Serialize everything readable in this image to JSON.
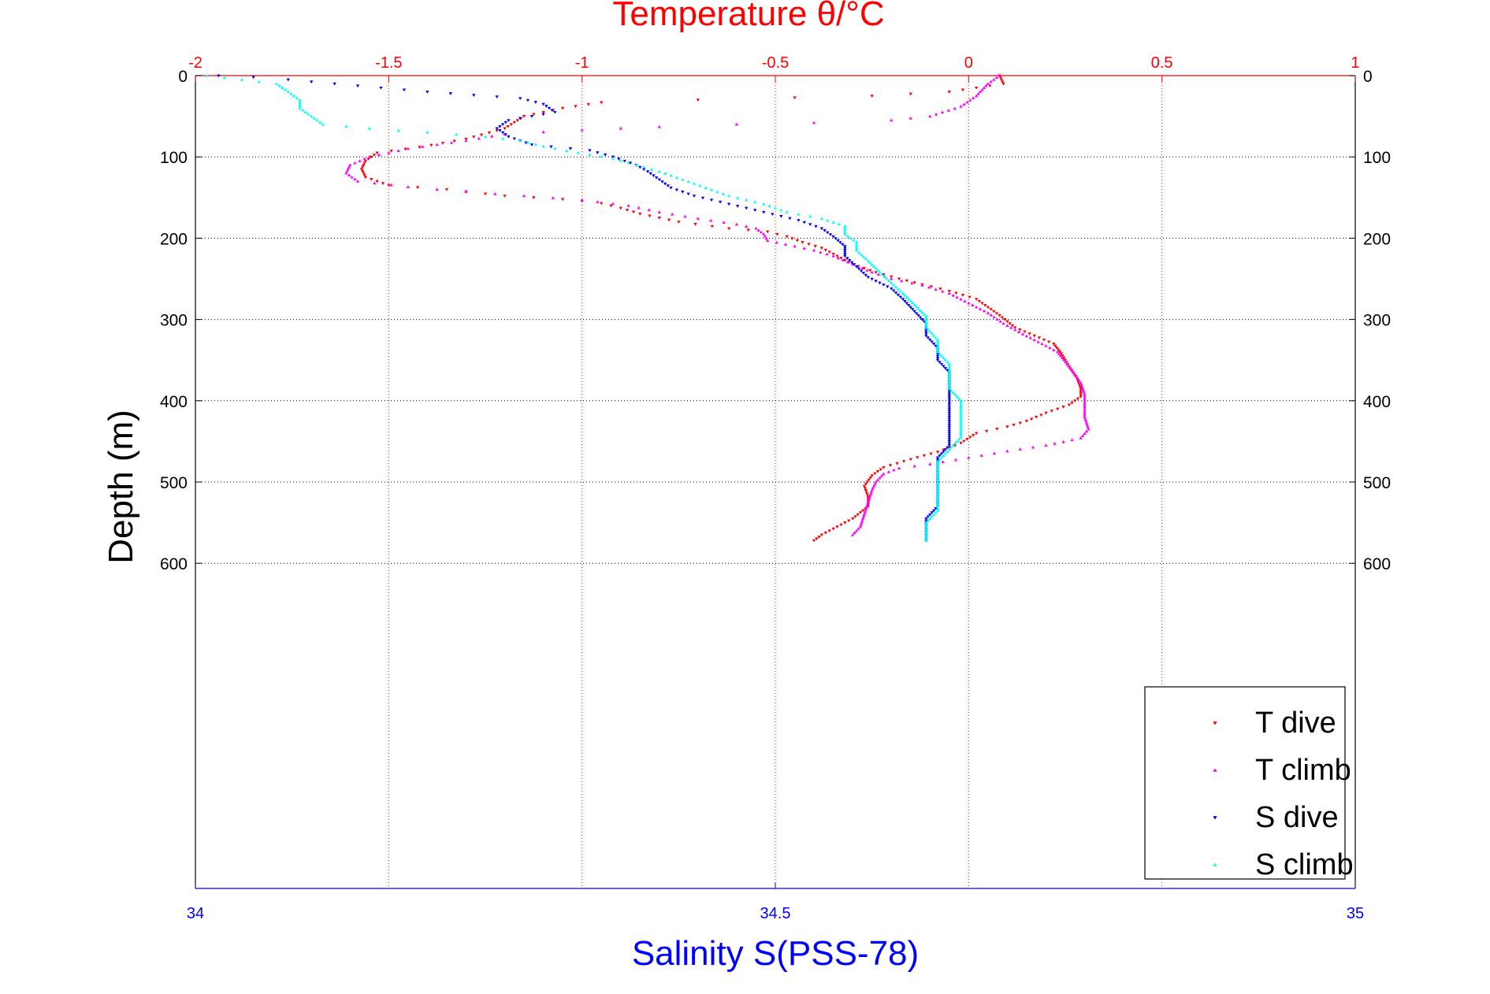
{
  "chart_data": {
    "type": "scatter",
    "title": "Temperature θ/°C",
    "xlabel": "Salinity S(PSS-78)",
    "ylabel": "Depth (m)",
    "x_top_axis": {
      "label": "Temperature θ/°C",
      "range": [
        -2,
        1
      ],
      "ticks": [
        "-2",
        "-1.5",
        "-1",
        "-0.5",
        "0",
        "0.5",
        "1"
      ],
      "color": "#ff0000"
    },
    "x_bottom_axis": {
      "label": "Salinity S(PSS-78)",
      "range": [
        34,
        35
      ],
      "ticks": [
        "34",
        "34.5",
        "35"
      ],
      "color": "#0000ff"
    },
    "y_axis": {
      "label": "Depth (m)",
      "range": [
        0,
        1000
      ],
      "reversed": true,
      "ticks": [
        "0",
        "100",
        "200",
        "300",
        "400",
        "500",
        "600"
      ]
    },
    "grid": true,
    "legend": {
      "placement": "bottom-right"
    },
    "series": [
      {
        "name": "T dive",
        "axis": "temperature",
        "color": "#ff0000",
        "marker": "down-triangle",
        "points": [
          [
            0.08,
            0
          ],
          [
            0.09,
            10
          ],
          [
            -0.05,
            20
          ],
          [
            -0.25,
            25
          ],
          [
            -0.45,
            27
          ],
          [
            -0.7,
            30
          ],
          [
            -0.95,
            33
          ],
          [
            -1.05,
            40
          ],
          [
            -1.15,
            50
          ],
          [
            -1.2,
            65
          ],
          [
            -1.3,
            78
          ],
          [
            -1.42,
            88
          ],
          [
            -1.53,
            95
          ],
          [
            -1.56,
            105
          ],
          [
            -1.57,
            115
          ],
          [
            -1.56,
            125
          ],
          [
            -1.5,
            135
          ],
          [
            -1.35,
            140
          ],
          [
            -1.2,
            148
          ],
          [
            -1.05,
            152
          ],
          [
            -0.95,
            157
          ],
          [
            -0.9,
            163
          ],
          [
            -0.85,
            170
          ],
          [
            -0.75,
            180
          ],
          [
            -0.62,
            188
          ],
          [
            -0.52,
            192
          ],
          [
            -0.47,
            198
          ],
          [
            -0.43,
            205
          ],
          [
            -0.38,
            212
          ],
          [
            -0.34,
            222
          ],
          [
            -0.3,
            232
          ],
          [
            -0.24,
            242
          ],
          [
            -0.18,
            250
          ],
          [
            -0.12,
            257
          ],
          [
            -0.05,
            265
          ],
          [
            0.02,
            275
          ],
          [
            0.05,
            285
          ],
          [
            0.08,
            295
          ],
          [
            0.12,
            310
          ],
          [
            0.17,
            320
          ],
          [
            0.22,
            330
          ],
          [
            0.24,
            342
          ],
          [
            0.26,
            358
          ],
          [
            0.28,
            372
          ],
          [
            0.29,
            385
          ],
          [
            0.29,
            395
          ],
          [
            0.26,
            405
          ],
          [
            0.2,
            415
          ],
          [
            0.15,
            425
          ],
          [
            0.1,
            432
          ],
          [
            0.02,
            440
          ],
          [
            -0.02,
            452
          ],
          [
            -0.08,
            463
          ],
          [
            -0.15,
            472
          ],
          [
            -0.22,
            482
          ],
          [
            -0.25,
            492
          ],
          [
            -0.27,
            505
          ],
          [
            -0.26,
            518
          ],
          [
            -0.26,
            530
          ],
          [
            -0.3,
            545
          ],
          [
            -0.34,
            555
          ],
          [
            -0.38,
            565
          ],
          [
            -0.4,
            572
          ]
        ]
      },
      {
        "name": "T climb",
        "axis": "temperature",
        "color": "#ff00ff",
        "marker": "up-triangle",
        "points": [
          [
            0.08,
            0
          ],
          [
            0.05,
            10
          ],
          [
            0.02,
            25
          ],
          [
            -0.02,
            38
          ],
          [
            -0.1,
            50
          ],
          [
            -0.2,
            55
          ],
          [
            -0.4,
            58
          ],
          [
            -0.6,
            60
          ],
          [
            -0.8,
            63
          ],
          [
            -1.0,
            67
          ],
          [
            -1.2,
            72
          ],
          [
            -1.3,
            80
          ],
          [
            -1.45,
            90
          ],
          [
            -1.55,
            100
          ],
          [
            -1.6,
            110
          ],
          [
            -1.61,
            120
          ],
          [
            -1.58,
            130
          ],
          [
            -1.45,
            137
          ],
          [
            -1.3,
            143
          ],
          [
            -1.15,
            148
          ],
          [
            -1.0,
            153
          ],
          [
            -0.88,
            160
          ],
          [
            -0.8,
            168
          ],
          [
            -0.7,
            176
          ],
          [
            -0.6,
            183
          ],
          [
            -0.55,
            188
          ],
          [
            -0.53,
            195
          ],
          [
            -0.52,
            203
          ],
          [
            -0.45,
            210
          ],
          [
            -0.4,
            215
          ],
          [
            -0.35,
            222
          ],
          [
            -0.3,
            232
          ],
          [
            -0.25,
            242
          ],
          [
            -0.2,
            250
          ],
          [
            -0.12,
            258
          ],
          [
            -0.05,
            268
          ],
          [
            0.0,
            280
          ],
          [
            0.05,
            292
          ],
          [
            0.09,
            305
          ],
          [
            0.14,
            318
          ],
          [
            0.19,
            330
          ],
          [
            0.23,
            340
          ],
          [
            0.25,
            352
          ],
          [
            0.27,
            365
          ],
          [
            0.29,
            378
          ],
          [
            0.3,
            392
          ],
          [
            0.3,
            405
          ],
          [
            0.3,
            420
          ],
          [
            0.31,
            435
          ],
          [
            0.29,
            446
          ],
          [
            0.2,
            455
          ],
          [
            0.1,
            462
          ],
          [
            0.0,
            470
          ],
          [
            -0.1,
            478
          ],
          [
            -0.18,
            483
          ],
          [
            -0.22,
            490
          ],
          [
            -0.24,
            500
          ],
          [
            -0.25,
            510
          ],
          [
            -0.26,
            525
          ],
          [
            -0.27,
            540
          ],
          [
            -0.28,
            555
          ],
          [
            -0.3,
            565
          ]
        ]
      },
      {
        "name": "S dive",
        "axis": "salinity",
        "color": "#0000ff",
        "marker": "down-triangle",
        "points": [
          [
            34.02,
            0
          ],
          [
            34.05,
            2
          ],
          [
            34.08,
            5
          ],
          [
            34.12,
            10
          ],
          [
            34.16,
            15
          ],
          [
            34.2,
            20
          ],
          [
            34.24,
            24
          ],
          [
            34.28,
            28
          ],
          [
            34.3,
            35
          ],
          [
            34.31,
            45
          ],
          [
            34.27,
            55
          ],
          [
            34.26,
            65
          ],
          [
            34.27,
            75
          ],
          [
            34.29,
            85
          ],
          [
            34.34,
            92
          ],
          [
            34.36,
            100
          ],
          [
            34.38,
            110
          ],
          [
            34.39,
            118
          ],
          [
            34.4,
            128
          ],
          [
            34.41,
            138
          ],
          [
            34.43,
            148
          ],
          [
            34.46,
            158
          ],
          [
            34.49,
            168
          ],
          [
            34.52,
            178
          ],
          [
            34.54,
            188
          ],
          [
            34.55,
            198
          ],
          [
            34.56,
            210
          ],
          [
            34.56,
            222
          ],
          [
            34.57,
            235
          ],
          [
            34.58,
            248
          ],
          [
            34.6,
            262
          ],
          [
            34.61,
            275
          ],
          [
            34.62,
            290
          ],
          [
            34.63,
            305
          ],
          [
            34.63,
            320
          ],
          [
            34.64,
            335
          ],
          [
            34.64,
            350
          ],
          [
            34.65,
            365
          ],
          [
            34.65,
            380
          ],
          [
            34.65,
            395
          ],
          [
            34.65,
            410
          ],
          [
            34.65,
            425
          ],
          [
            34.65,
            440
          ],
          [
            34.65,
            455
          ],
          [
            34.64,
            470
          ],
          [
            34.64,
            485
          ],
          [
            34.64,
            500
          ],
          [
            34.64,
            515
          ],
          [
            34.64,
            530
          ],
          [
            34.63,
            545
          ],
          [
            34.63,
            560
          ],
          [
            34.63,
            572
          ]
        ]
      },
      {
        "name": "S climb",
        "axis": "salinity",
        "color": "#00ffff",
        "marker": "up-triangle",
        "points": [
          [
            34.01,
            0
          ],
          [
            34.04,
            5
          ],
          [
            34.07,
            10
          ],
          [
            34.08,
            20
          ],
          [
            34.09,
            30
          ],
          [
            34.09,
            40
          ],
          [
            34.1,
            50
          ],
          [
            34.11,
            60
          ],
          [
            34.15,
            65
          ],
          [
            34.2,
            70
          ],
          [
            34.25,
            75
          ],
          [
            34.28,
            80
          ],
          [
            34.3,
            87
          ],
          [
            34.33,
            95
          ],
          [
            34.36,
            102
          ],
          [
            34.38,
            110
          ],
          [
            34.4,
            118
          ],
          [
            34.42,
            128
          ],
          [
            34.44,
            138
          ],
          [
            34.46,
            148
          ],
          [
            34.49,
            158
          ],
          [
            34.51,
            168
          ],
          [
            34.54,
            176
          ],
          [
            34.56,
            185
          ],
          [
            34.56,
            195
          ],
          [
            34.57,
            205
          ],
          [
            34.57,
            215
          ],
          [
            34.58,
            228
          ],
          [
            34.59,
            242
          ],
          [
            34.6,
            255
          ],
          [
            34.61,
            268
          ],
          [
            34.62,
            282
          ],
          [
            34.63,
            296
          ],
          [
            34.63,
            310
          ],
          [
            34.64,
            325
          ],
          [
            34.64,
            340
          ],
          [
            34.65,
            355
          ],
          [
            34.65,
            370
          ],
          [
            34.65,
            385
          ],
          [
            34.66,
            400
          ],
          [
            34.66,
            415
          ],
          [
            34.66,
            430
          ],
          [
            34.66,
            445
          ],
          [
            34.65,
            460
          ],
          [
            34.64,
            475
          ],
          [
            34.64,
            490
          ],
          [
            34.64,
            505
          ],
          [
            34.64,
            520
          ],
          [
            34.64,
            535
          ],
          [
            34.63,
            550
          ],
          [
            34.63,
            565
          ],
          [
            34.63,
            572
          ]
        ]
      }
    ]
  }
}
